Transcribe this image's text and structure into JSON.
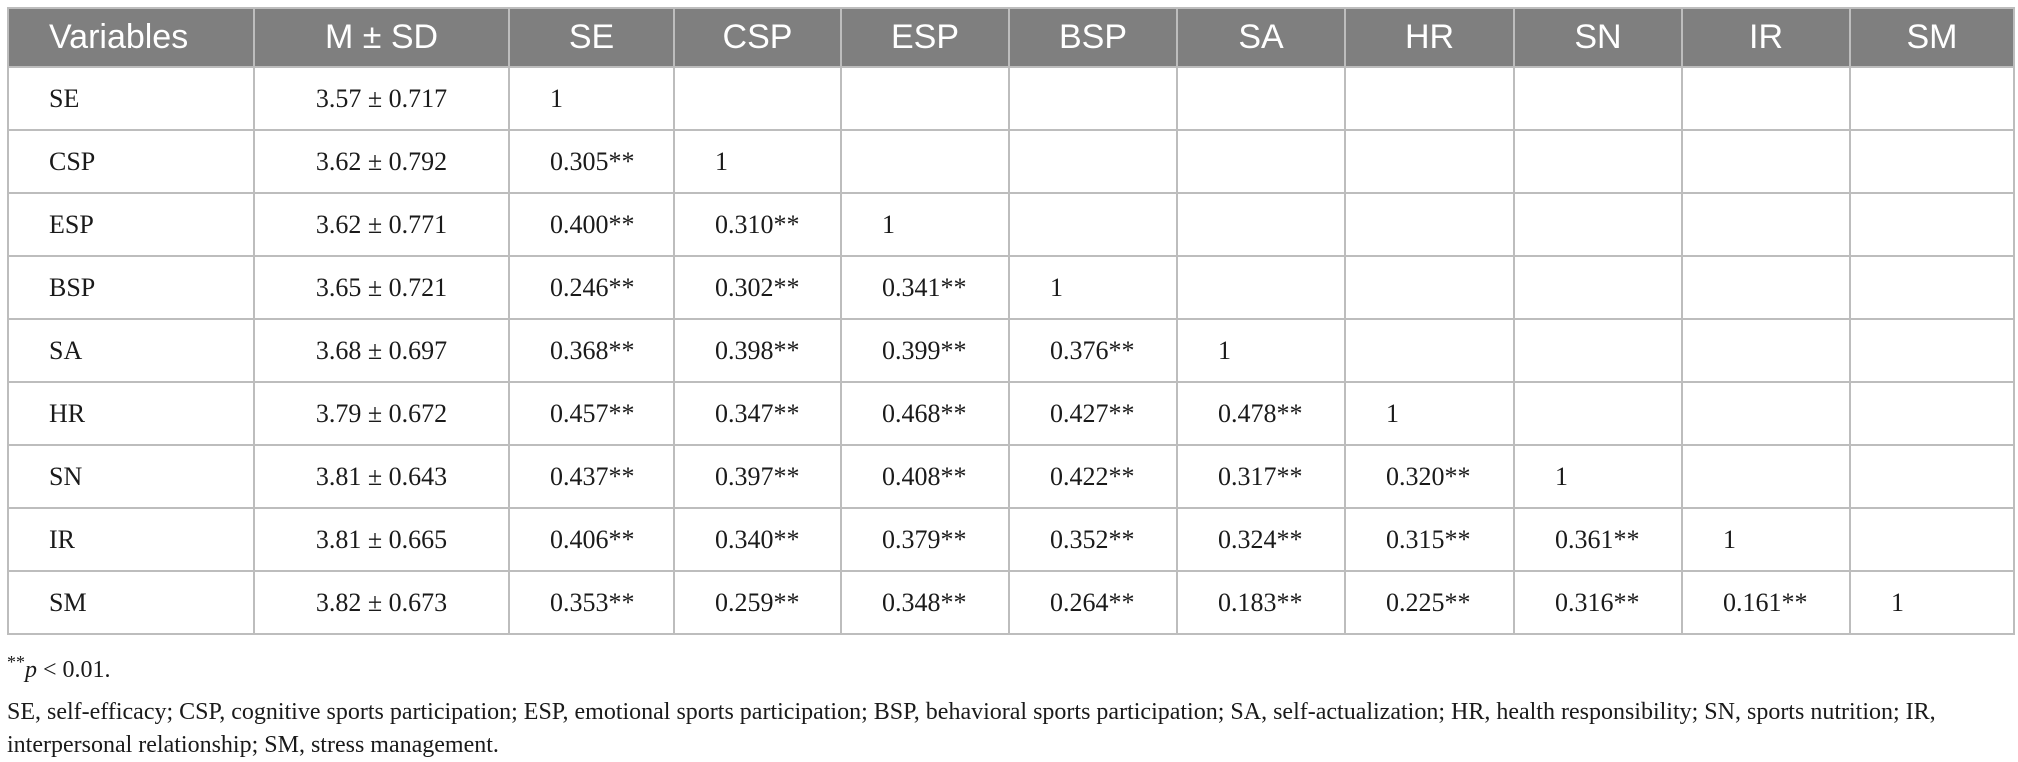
{
  "table": {
    "headers": [
      "Variables",
      "M ± SD",
      "SE",
      "CSP",
      "ESP",
      "BSP",
      "SA",
      "HR",
      "SN",
      "IR",
      "SM"
    ],
    "rows": [
      {
        "variable": "SE",
        "msd": "3.57 ± 0.717",
        "values": [
          "1",
          "",
          "",
          "",
          "",
          "",
          "",
          "",
          ""
        ]
      },
      {
        "variable": "CSP",
        "msd": "3.62 ± 0.792",
        "values": [
          "0.305**",
          "1",
          "",
          "",
          "",
          "",
          "",
          "",
          ""
        ]
      },
      {
        "variable": "ESP",
        "msd": "3.62 ± 0.771",
        "values": [
          "0.400**",
          "0.310**",
          "1",
          "",
          "",
          "",
          "",
          "",
          ""
        ]
      },
      {
        "variable": "BSP",
        "msd": "3.65 ± 0.721",
        "values": [
          "0.246**",
          "0.302**",
          "0.341**",
          "1",
          "",
          "",
          "",
          "",
          ""
        ]
      },
      {
        "variable": "SA",
        "msd": "3.68 ± 0.697",
        "values": [
          "0.368**",
          "0.398**",
          "0.399**",
          "0.376**",
          "1",
          "",
          "",
          "",
          ""
        ]
      },
      {
        "variable": "HR",
        "msd": "3.79 ± 0.672",
        "values": [
          "0.457**",
          "0.347**",
          "0.468**",
          "0.427**",
          "0.478**",
          "1",
          "",
          "",
          ""
        ]
      },
      {
        "variable": "SN",
        "msd": "3.81 ± 0.643",
        "values": [
          "0.437**",
          "0.397**",
          "0.408**",
          "0.422**",
          "0.317**",
          "0.320**",
          "1",
          "",
          ""
        ]
      },
      {
        "variable": "IR",
        "msd": "3.81 ± 0.665",
        "values": [
          "0.406**",
          "0.340**",
          "0.379**",
          "0.352**",
          "0.324**",
          "0.315**",
          "0.361**",
          "1",
          ""
        ]
      },
      {
        "variable": "SM",
        "msd": "3.82 ± 0.673",
        "values": [
          "0.353**",
          "0.259**",
          "0.348**",
          "0.264**",
          "0.183**",
          "0.225**",
          "0.316**",
          "0.161**",
          "1"
        ]
      }
    ]
  },
  "notes": {
    "sig_marker": "**",
    "sig_var": "p",
    "sig_rest": " < 0.01.",
    "abbreviations": "SE, self-efficacy; CSP, cognitive sports participation; ESP, emotional sports participation; BSP, behavioral sports participation; SA, self-actualization; HR, health responsibility; SN, sports nutrition; IR, interpersonal relationship; SM, stress management."
  }
}
